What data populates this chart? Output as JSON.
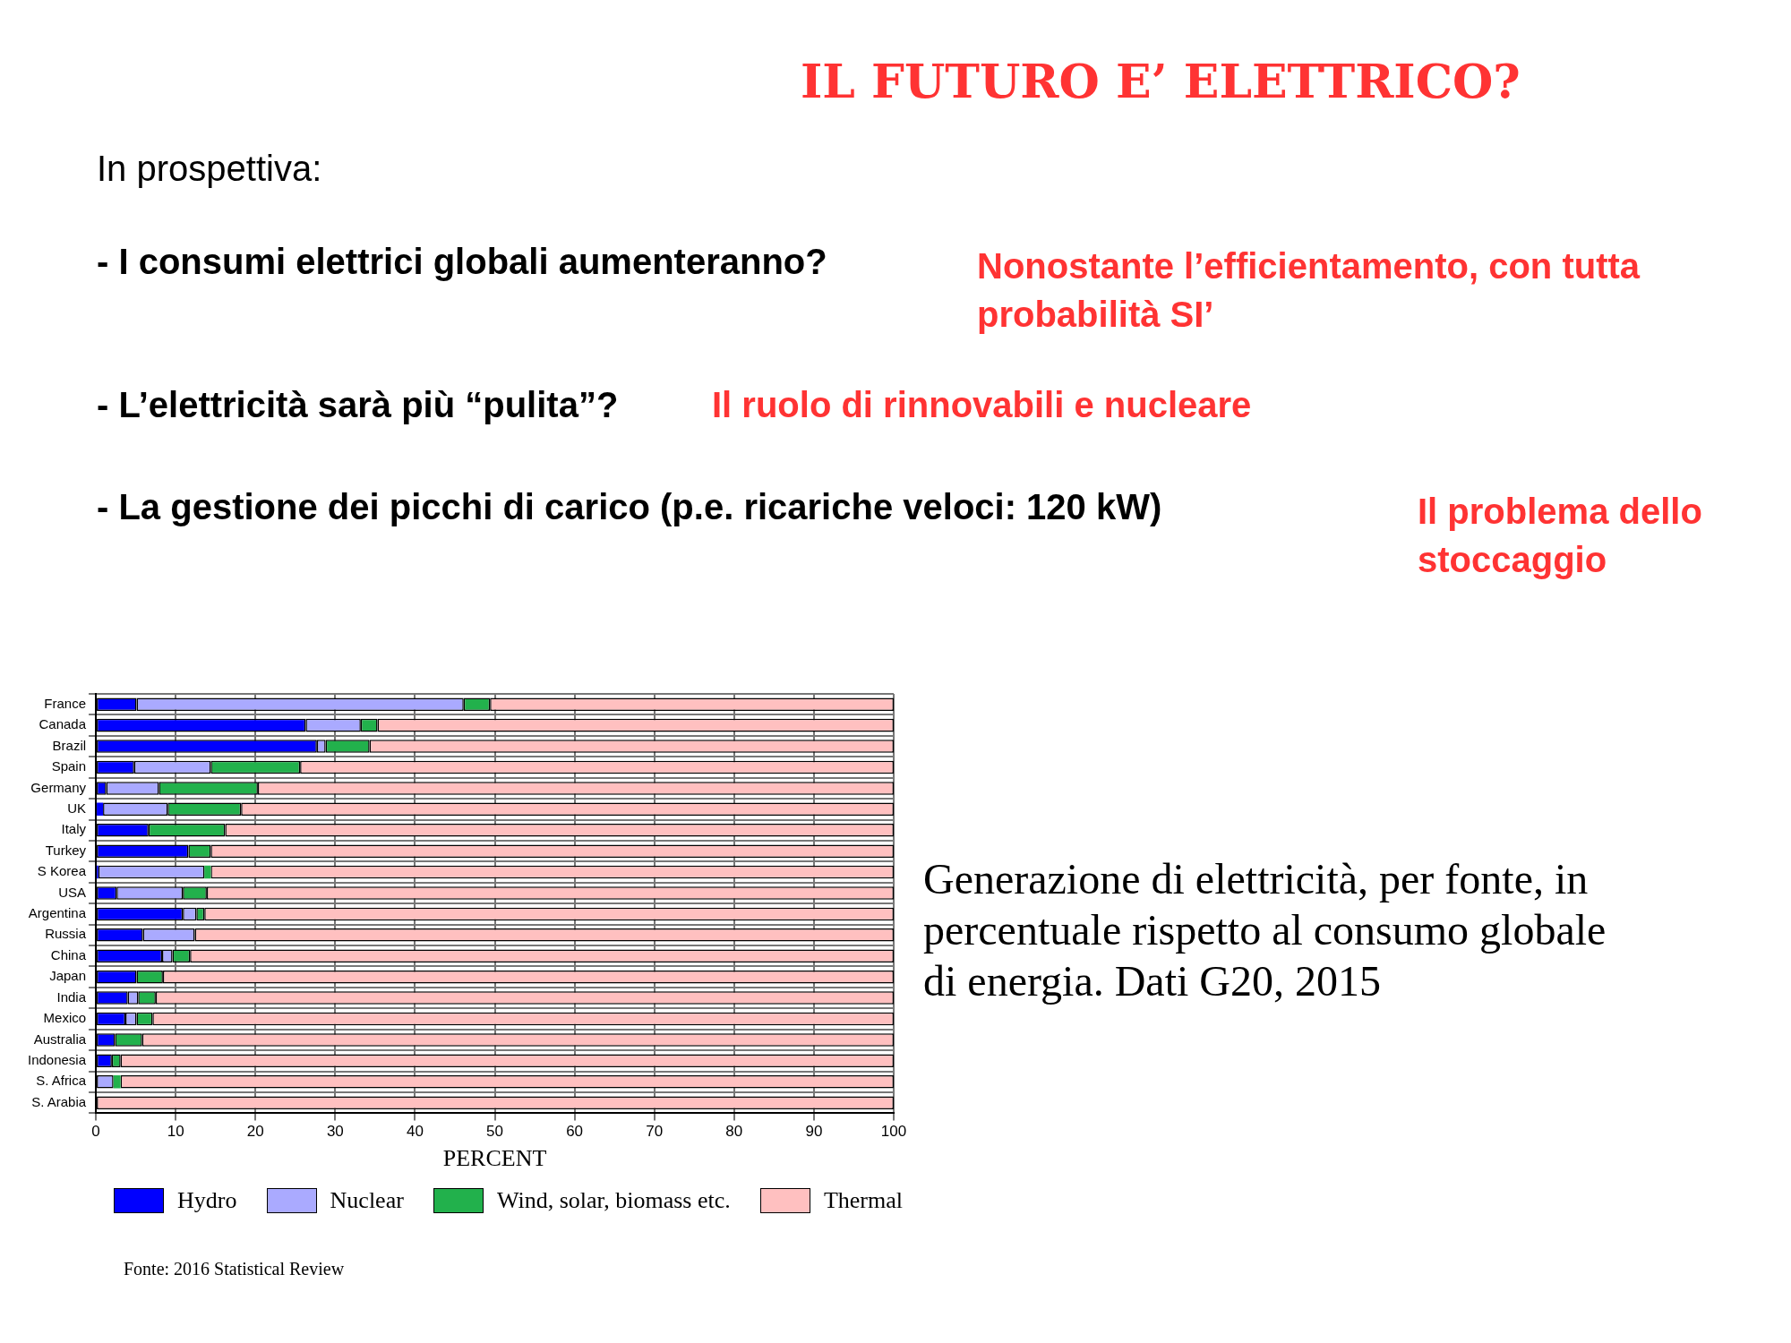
{
  "chart_data": {
    "type": "bar",
    "orientation": "horizontal",
    "stacked": true,
    "title": "IL FUTURO E’ ELETTRICO?",
    "subtitle": "In prospettiva:",
    "xlabel": "PERCENT",
    "categories": [
      "France",
      "Canada",
      "Brazil",
      "Spain",
      "Germany",
      "UK",
      "Italy",
      "Turkey",
      "S Korea",
      "USA",
      "Argentina",
      "Russia",
      "China",
      "Japan",
      "India",
      "Mexico",
      "Australia",
      "Indonesia",
      "S. Africa",
      "S. Arabia"
    ],
    "series": [
      {
        "name": "Hydro",
        "color": "#0000ff",
        "values": [
          5.1,
          26.3,
          27.7,
          4.8,
          1.3,
          0.9,
          6.6,
          11.6,
          0.3,
          2.6,
          10.9,
          5.9,
          8.3,
          5.1,
          4.0,
          3.7,
          2.4,
          2.0,
          0,
          0
        ]
      },
      {
        "name": "Nuclear",
        "color": "#aaaaff",
        "values": [
          41.0,
          6.9,
          1.1,
          9.6,
          6.6,
          8.1,
          0,
          0,
          13.3,
          8.3,
          1.7,
          6.5,
          1.3,
          0,
          1.3,
          1.4,
          0,
          0,
          2.2,
          0
        ]
      },
      {
        "name": "Wind, solar, biomass etc.",
        "color": "#22b14c",
        "values": [
          3.3,
          2.1,
          5.5,
          11.2,
          12.4,
          9.2,
          9.6,
          2.8,
          0.8,
          3.0,
          1.0,
          0,
          2.2,
          3.3,
          2.2,
          2.0,
          3.4,
          1.1,
          0.9,
          0
        ]
      },
      {
        "name": "Thermal",
        "color": "#ffc0c0",
        "values": [
          50.6,
          64.7,
          65.7,
          74.4,
          79.7,
          81.8,
          83.8,
          85.6,
          85.6,
          86.1,
          86.4,
          87.6,
          88.2,
          91.6,
          92.5,
          92.9,
          94.2,
          96.9,
          96.9,
          100
        ]
      }
    ],
    "xlim": [
      0,
      100
    ],
    "xticks": [
      0,
      10,
      20,
      30,
      40,
      50,
      60,
      70,
      80,
      90,
      100
    ],
    "grid": true,
    "legend": "bottom",
    "annotations": [
      "- I consumi elettrici globali aumenteranno?",
      "Nonostante l’efficientamento, con tutta probabilità SI’",
      "- L’elettricità sarà più “pulita”?",
      "Il ruolo di rinnovabili e nucleare",
      "- La gestione dei picchi di carico (p.e. ricariche veloci: 120 kW)",
      "Il problema dello stoccaggio",
      "Generazione di elettricità, per fonte, in percentuale rispetto al consumo globale di energia. Dati G20, 2015",
      "Fonte: 2016 Statistical Review"
    ]
  }
}
